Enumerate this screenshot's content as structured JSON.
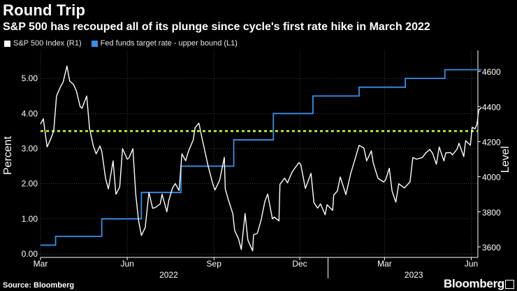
{
  "header": {
    "title": "Round Trip",
    "subtitle": "S&P 500 has recouped all of its plunge since cycle's first rate hike in March 2022"
  },
  "footer": {
    "source": "Source: Bloomberg",
    "brand": "Bloomberg"
  },
  "colors": {
    "background": "#000000",
    "spx": "#ffffff",
    "fed": "#3a8de8",
    "reference": "#b6e21e"
  },
  "chart_data": {
    "type": "line",
    "title": "Round Trip",
    "subtitle": "S&P 500 has recouped all of its plunge since cycle's first rate hike in March 2022",
    "ylabel_left": "Percent",
    "ylabel_right": "Level",
    "left_axis": {
      "min": -0.1,
      "max": 5.8,
      "ticks": [
        0.0,
        1.0,
        2.0,
        3.0,
        4.0,
        5.0
      ],
      "tick_labels": [
        "0.00",
        "1.00",
        "2.00",
        "3.00",
        "4.00",
        "5.00"
      ]
    },
    "right_axis": {
      "min": 3540,
      "max": 4720,
      "ticks": [
        3600,
        3800,
        4000,
        4200,
        4400,
        4600
      ],
      "tick_labels": [
        "3600",
        "3800",
        "4000",
        "4200",
        "4400",
        "4600"
      ]
    },
    "x_axis": {
      "start": "2022-03-01",
      "end": "2023-06-08",
      "month_labels": [
        {
          "label": "Mar",
          "date": "2022-03-01"
        },
        {
          "label": "Jun",
          "date": "2022-06-01"
        },
        {
          "label": "Sep",
          "date": "2022-09-01"
        },
        {
          "label": "Dec",
          "date": "2022-12-01"
        },
        {
          "label": "Mar",
          "date": "2023-03-01"
        },
        {
          "label": "Jun",
          "date": "2023-06-01"
        }
      ],
      "year_labels": [
        {
          "label": "2022",
          "date": "2022-07-15"
        },
        {
          "label": "2023",
          "date": "2023-04-01"
        }
      ],
      "year_divider": "2022-12-31"
    },
    "legend": [
      "S&P 500 Index (R1)",
      "Fed funds target rate - upper bound (L1)"
    ],
    "reference_line": {
      "value_right": 4260,
      "style": "dashed",
      "color": "#b6e21e"
    },
    "series": [
      {
        "name": "S&P 500 Index (R1)",
        "axis": "right",
        "color": "#ffffff",
        "points": [
          [
            "2022-03-01",
            4300
          ],
          [
            "2022-03-04",
            4330
          ],
          [
            "2022-03-08",
            4170
          ],
          [
            "2022-03-11",
            4205
          ],
          [
            "2022-03-15",
            4260
          ],
          [
            "2022-03-18",
            4460
          ],
          [
            "2022-03-22",
            4510
          ],
          [
            "2022-03-25",
            4540
          ],
          [
            "2022-03-29",
            4630
          ],
          [
            "2022-04-01",
            4545
          ],
          [
            "2022-04-05",
            4525
          ],
          [
            "2022-04-08",
            4490
          ],
          [
            "2022-04-12",
            4400
          ],
          [
            "2022-04-14",
            4390
          ],
          [
            "2022-04-19",
            4460
          ],
          [
            "2022-04-22",
            4275
          ],
          [
            "2022-04-26",
            4175
          ],
          [
            "2022-04-29",
            4130
          ],
          [
            "2022-05-03",
            4175
          ],
          [
            "2022-05-05",
            4145
          ],
          [
            "2022-05-09",
            3990
          ],
          [
            "2022-05-12",
            3930
          ],
          [
            "2022-05-17",
            4090
          ],
          [
            "2022-05-20",
            3900
          ],
          [
            "2022-05-24",
            3940
          ],
          [
            "2022-05-27",
            4160
          ],
          [
            "2022-06-01",
            4100
          ],
          [
            "2022-06-03",
            4108
          ],
          [
            "2022-06-07",
            4160
          ],
          [
            "2022-06-10",
            3900
          ],
          [
            "2022-06-13",
            3750
          ],
          [
            "2022-06-16",
            3665
          ],
          [
            "2022-06-20",
            3710
          ],
          [
            "2022-06-24",
            3910
          ],
          [
            "2022-06-28",
            3820
          ],
          [
            "2022-07-01",
            3825
          ],
          [
            "2022-07-06",
            3845
          ],
          [
            "2022-07-08",
            3900
          ],
          [
            "2022-07-13",
            3800
          ],
          [
            "2022-07-15",
            3863
          ],
          [
            "2022-07-19",
            3936
          ],
          [
            "2022-07-22",
            3961
          ],
          [
            "2022-07-26",
            3921
          ],
          [
            "2022-07-29",
            4130
          ],
          [
            "2022-08-02",
            4091
          ],
          [
            "2022-08-05",
            4145
          ],
          [
            "2022-08-10",
            4210
          ],
          [
            "2022-08-12",
            4280
          ],
          [
            "2022-08-16",
            4305
          ],
          [
            "2022-08-19",
            4228
          ],
          [
            "2022-08-23",
            4130
          ],
          [
            "2022-08-26",
            4057
          ],
          [
            "2022-08-31",
            3955
          ],
          [
            "2022-09-02",
            3924
          ],
          [
            "2022-09-07",
            3979
          ],
          [
            "2022-09-12",
            4110
          ],
          [
            "2022-09-13",
            3932
          ],
          [
            "2022-09-16",
            3873
          ],
          [
            "2022-09-21",
            3790
          ],
          [
            "2022-09-23",
            3693
          ],
          [
            "2022-09-27",
            3647
          ],
          [
            "2022-09-30",
            3585
          ],
          [
            "2022-10-04",
            3790
          ],
          [
            "2022-10-07",
            3639
          ],
          [
            "2022-10-12",
            3577
          ],
          [
            "2022-10-13",
            3669
          ],
          [
            "2022-10-17",
            3677
          ],
          [
            "2022-10-21",
            3752
          ],
          [
            "2022-10-25",
            3859
          ],
          [
            "2022-10-28",
            3901
          ],
          [
            "2022-11-02",
            3760
          ],
          [
            "2022-11-04",
            3770
          ],
          [
            "2022-11-09",
            3748
          ],
          [
            "2022-11-10",
            3956
          ],
          [
            "2022-11-15",
            3992
          ],
          [
            "2022-11-18",
            3965
          ],
          [
            "2022-11-23",
            4027
          ],
          [
            "2022-11-30",
            4080
          ],
          [
            "2022-12-02",
            4071
          ],
          [
            "2022-12-07",
            3933
          ],
          [
            "2022-12-13",
            4019
          ],
          [
            "2022-12-16",
            3852
          ],
          [
            "2022-12-20",
            3821
          ],
          [
            "2022-12-23",
            3845
          ],
          [
            "2022-12-28",
            3783
          ],
          [
            "2022-12-30",
            3840
          ],
          [
            "2023-01-05",
            3808
          ],
          [
            "2023-01-06",
            3895
          ],
          [
            "2023-01-10",
            3919
          ],
          [
            "2023-01-13",
            3999
          ],
          [
            "2023-01-19",
            3898
          ],
          [
            "2023-01-24",
            4017
          ],
          [
            "2023-01-27",
            4070
          ],
          [
            "2023-02-02",
            4179
          ],
          [
            "2023-02-07",
            4164
          ],
          [
            "2023-02-10",
            4090
          ],
          [
            "2023-02-15",
            4147
          ],
          [
            "2023-02-17",
            4079
          ],
          [
            "2023-02-22",
            3991
          ],
          [
            "2023-02-28",
            3970
          ],
          [
            "2023-03-02",
            3981
          ],
          [
            "2023-03-06",
            4048
          ],
          [
            "2023-03-09",
            3918
          ],
          [
            "2023-03-13",
            3855
          ],
          [
            "2023-03-16",
            3960
          ],
          [
            "2023-03-22",
            3936
          ],
          [
            "2023-03-28",
            3971
          ],
          [
            "2023-03-31",
            4109
          ],
          [
            "2023-04-04",
            4100
          ],
          [
            "2023-04-10",
            4109
          ],
          [
            "2023-04-14",
            4137
          ],
          [
            "2023-04-18",
            4155
          ],
          [
            "2023-04-21",
            4133
          ],
          [
            "2023-04-25",
            4071
          ],
          [
            "2023-04-28",
            4169
          ],
          [
            "2023-05-03",
            4090
          ],
          [
            "2023-05-05",
            4136
          ],
          [
            "2023-05-10",
            4137
          ],
          [
            "2023-05-12",
            4124
          ],
          [
            "2023-05-17",
            4158
          ],
          [
            "2023-05-19",
            4191
          ],
          [
            "2023-05-24",
            4115
          ],
          [
            "2023-05-26",
            4205
          ],
          [
            "2023-05-31",
            4180
          ],
          [
            "2023-06-02",
            4282
          ],
          [
            "2023-06-05",
            4273
          ],
          [
            "2023-06-07",
            4300
          ],
          [
            "2023-06-08",
            4340
          ],
          [
            "2023-06-09",
            4380
          ],
          [
            "2023-06-12",
            4395
          ]
        ]
      },
      {
        "name": "Fed funds target rate - upper bound (L1)",
        "axis": "left",
        "color": "#3a8de8",
        "steps": [
          [
            "2022-03-01",
            0.25
          ],
          [
            "2022-03-17",
            0.5
          ],
          [
            "2022-05-05",
            1.0
          ],
          [
            "2022-06-16",
            1.75
          ],
          [
            "2022-07-28",
            2.5
          ],
          [
            "2022-09-22",
            3.25
          ],
          [
            "2022-11-03",
            4.0
          ],
          [
            "2022-12-15",
            4.5
          ],
          [
            "2023-02-02",
            4.75
          ],
          [
            "2023-03-23",
            5.0
          ],
          [
            "2023-05-04",
            5.25
          ],
          [
            "2023-06-12",
            5.25
          ]
        ]
      }
    ]
  }
}
